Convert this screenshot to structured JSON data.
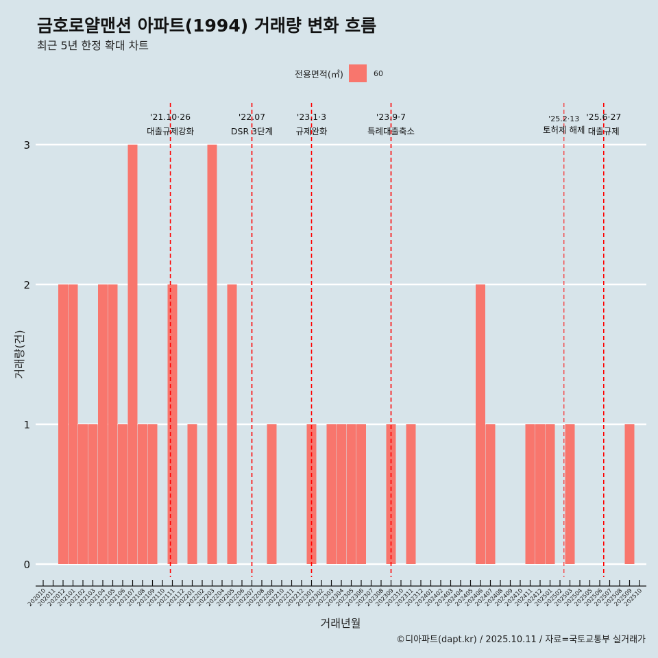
{
  "chart_data": {
    "type": "bar",
    "title": "금호로얄맨션 아파트(1994) 거래량 변화 흐름",
    "subtitle": "최근 5년 한정 확대 차트",
    "xlabel": "거래년월",
    "ylabel": "거래량(건)",
    "ylim": [
      0,
      3
    ],
    "yticks": [
      0,
      1,
      2,
      3
    ],
    "grid": true,
    "legend": {
      "title": "전용면적(㎡)",
      "entries": [
        {
          "name": "60",
          "color": "#f8766d"
        }
      ],
      "placement": "top"
    },
    "categories": [
      "202010",
      "202011",
      "202012",
      "202101",
      "202102",
      "202103",
      "202104",
      "202105",
      "202106",
      "202107",
      "202108",
      "202109",
      "202110",
      "202111",
      "202112",
      "202201",
      "202202",
      "202203",
      "202204",
      "202205",
      "202206",
      "202207",
      "202208",
      "202209",
      "202210",
      "202211",
      "202212",
      "202301",
      "202302",
      "202303",
      "202304",
      "202305",
      "202306",
      "202307",
      "202308",
      "202309",
      "202310",
      "202311",
      "202312",
      "202401",
      "202402",
      "202403",
      "202404",
      "202405",
      "202406",
      "202407",
      "202408",
      "202409",
      "202410",
      "202411",
      "202412",
      "202501",
      "202502",
      "202503",
      "202504",
      "202505",
      "202506",
      "202507",
      "202508",
      "202509",
      "202510"
    ],
    "values": [
      0,
      0,
      2,
      2,
      1,
      1,
      2,
      2,
      1,
      3,
      1,
      1,
      0,
      2,
      0,
      1,
      0,
      3,
      0,
      2,
      0,
      0,
      0,
      1,
      0,
      0,
      0,
      1,
      0,
      1,
      1,
      1,
      1,
      0,
      0,
      1,
      0,
      1,
      0,
      0,
      0,
      0,
      0,
      0,
      2,
      1,
      0,
      0,
      0,
      1,
      1,
      1,
      0,
      1,
      0,
      0,
      0,
      0,
      0,
      1,
      0
    ],
    "annotations": [
      {
        "month_index": 12.8,
        "date": "'21.10·26",
        "label": "대출규제강화",
        "style": "major"
      },
      {
        "month_index": 21,
        "date": "'22.07",
        "label": "DSR 3단계",
        "style": "major"
      },
      {
        "month_index": 27,
        "date": "'23.1·3",
        "label": "규제완화",
        "style": "major"
      },
      {
        "month_index": 35,
        "date": "'23.9·7",
        "label": "특례대출축소",
        "style": "major"
      },
      {
        "month_index": 52.4,
        "date": "'25.2·13",
        "label": "토허제 해제",
        "style": "minor"
      },
      {
        "month_index": 56.4,
        "date": "'25.6·27",
        "label": "대출규제",
        "style": "major"
      }
    ]
  },
  "caption": "©디아파트(dapt.kr) / 2025.10.11 / 자료=국토교통부 실거래가",
  "colors": {
    "bar": "#f8766d",
    "vline": "#ff0000",
    "bg": "#d7e4ea"
  }
}
